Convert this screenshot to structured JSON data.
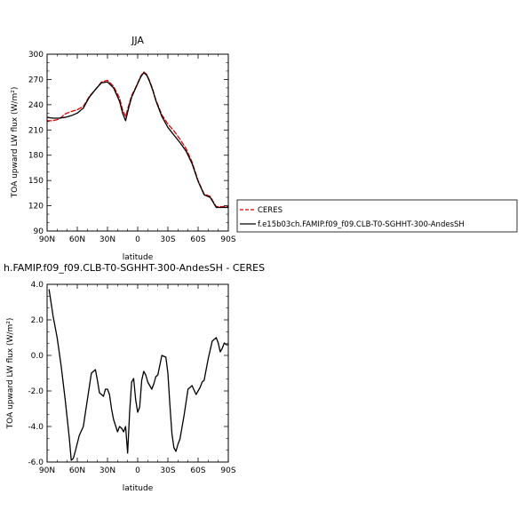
{
  "chart_data": [
    {
      "type": "line",
      "title": "JJA",
      "xlabel": "latitude",
      "ylabel": "TOA upward LW flux (W/m²)",
      "xlim": [
        90,
        -90
      ],
      "ylim": [
        90,
        300
      ],
      "x_ticks": [
        90,
        60,
        30,
        0,
        -30,
        -60,
        -90
      ],
      "x_tick_labels": [
        "90N",
        "60N",
        "30N",
        "0",
        "30S",
        "60S",
        "90S"
      ],
      "y_ticks": [
        90,
        120,
        150,
        180,
        210,
        240,
        270,
        300
      ],
      "y_tick_labels": [
        "90",
        "120",
        "150",
        "180",
        "210",
        "240",
        "270",
        "300"
      ],
      "legend_position": "right",
      "series": [
        {
          "name": "CERES",
          "color": "#dd0000",
          "dash": true,
          "x": [
            90,
            84,
            78,
            72,
            66,
            60,
            54,
            48,
            42,
            36,
            30,
            24,
            18,
            15,
            12,
            9,
            6,
            3,
            0,
            -3,
            -6,
            -9,
            -12,
            -15,
            -18,
            -24,
            -30,
            -36,
            -42,
            -48,
            -54,
            -60,
            -66,
            -72,
            -78,
            -84,
            -90
          ],
          "y": [
            221,
            221,
            223,
            229,
            232,
            234,
            238,
            250,
            258,
            267,
            269,
            262,
            248,
            234,
            226,
            239,
            251,
            258,
            266,
            274,
            279,
            276,
            268,
            258,
            246,
            228,
            217,
            209,
            199,
            188,
            172,
            150,
            134,
            131,
            119,
            119,
            119
          ]
        },
        {
          "name": "f.e15b03ch.FAMIP.f09_f09.CLB-T0-SGHHT-300-AndesSH",
          "color": "#000000",
          "dash": false,
          "x": [
            90,
            84,
            78,
            72,
            66,
            60,
            54,
            48,
            42,
            36,
            30,
            24,
            18,
            15,
            12,
            9,
            6,
            3,
            0,
            -3,
            -6,
            -9,
            -12,
            -15,
            -18,
            -24,
            -30,
            -36,
            -42,
            -48,
            -54,
            -60,
            -66,
            -72,
            -78,
            -84,
            -90
          ],
          "y": [
            225,
            224,
            224,
            225,
            227,
            230,
            236,
            249,
            258,
            266,
            267,
            260,
            244,
            230,
            221,
            236,
            249,
            257,
            265,
            273,
            278,
            275,
            267,
            257,
            245,
            226,
            213,
            204,
            195,
            185,
            170,
            149,
            133,
            130,
            118,
            118,
            118
          ]
        }
      ]
    },
    {
      "type": "line",
      "title": "h.FAMIP.f09_f09.CLB-T0-SGHHT-300-AndesSH - CERES",
      "xlabel": "latitude",
      "ylabel": "TOA upward LW flux (W/m²)",
      "xlim": [
        90,
        -90
      ],
      "ylim": [
        -6,
        4
      ],
      "x_ticks": [
        90,
        60,
        30,
        0,
        -30,
        -60,
        -90
      ],
      "x_tick_labels": [
        "90N",
        "60N",
        "30N",
        "0",
        "30S",
        "60S",
        "90S"
      ],
      "y_ticks": [
        -6,
        -4,
        -2,
        0,
        2,
        4
      ],
      "y_tick_labels": [
        "-6.0",
        "-4.0",
        "-2.0",
        "0.0",
        "2.0",
        "4.0"
      ],
      "series": [
        {
          "color": "#000000",
          "x": [
            88,
            84,
            80,
            76,
            72,
            68,
            66,
            64,
            62,
            58,
            54,
            50,
            46,
            42,
            40,
            38,
            36,
            34,
            32,
            30,
            28,
            26,
            24,
            20,
            18,
            16,
            14,
            12,
            10,
            8,
            6,
            4,
            2,
            0,
            -2,
            -4,
            -6,
            -8,
            -10,
            -12,
            -14,
            -16,
            -18,
            -20,
            -24,
            -28,
            -30,
            -32,
            -34,
            -36,
            -38,
            -40,
            -42,
            -46,
            -50,
            -54,
            -58,
            -60,
            -62,
            -64,
            -66,
            -70,
            -74,
            -78,
            -80,
            -82,
            -84,
            -86,
            -88,
            -90
          ],
          "y": [
            3.7,
            2.2,
            1.0,
            -0.6,
            -2.5,
            -4.6,
            -5.9,
            -5.8,
            -5.4,
            -4.5,
            -4.0,
            -2.5,
            -1.0,
            -0.8,
            -1.4,
            -2.1,
            -2.2,
            -2.3,
            -1.9,
            -1.9,
            -2.2,
            -3.0,
            -3.6,
            -4.3,
            -4.0,
            -4.1,
            -4.3,
            -4.0,
            -5.5,
            -3.2,
            -1.5,
            -1.3,
            -2.5,
            -3.2,
            -2.9,
            -1.4,
            -0.9,
            -1.1,
            -1.5,
            -1.7,
            -1.9,
            -1.6,
            -1.2,
            -1.1,
            0.0,
            -0.1,
            -1.0,
            -2.8,
            -4.4,
            -5.2,
            -5.4,
            -5.0,
            -4.7,
            -3.4,
            -1.9,
            -1.7,
            -2.2,
            -2.0,
            -1.8,
            -1.5,
            -1.4,
            -0.2,
            0.8,
            1.0,
            0.7,
            0.2,
            0.4,
            0.7,
            0.6,
            0.6
          ]
        }
      ]
    }
  ]
}
